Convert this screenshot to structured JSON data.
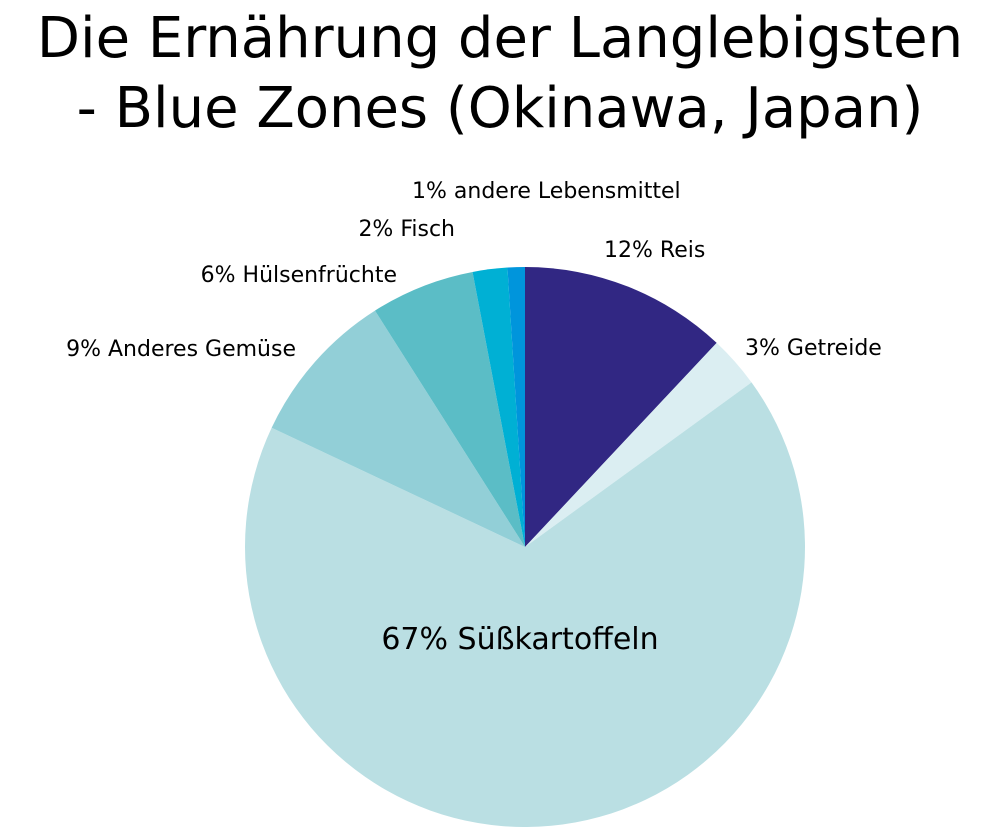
{
  "title_lines": [
    "Die Ernährung der Langlebigsten",
    "- Blue Zones (Okinawa, Japan)"
  ],
  "chart_data": {
    "type": "pie",
    "title": "Die Ernährung der Langlebigsten - Blue Zones (Okinawa, Japan)",
    "slices": [
      {
        "label": "12% Reis",
        "value": 12,
        "color": "#312783"
      },
      {
        "label": "3% Getreide",
        "value": 3,
        "color": "#dbeef2"
      },
      {
        "label": "67% Süßkartoffeln",
        "value": 67,
        "color": "#badfe3"
      },
      {
        "label": "9% Anderes Gemüse",
        "value": 9,
        "color": "#92cfd7"
      },
      {
        "label": "6% Hülsenfrüchte",
        "value": 6,
        "color": "#5bbdc6"
      },
      {
        "label": "2% Fisch",
        "value": 2,
        "color": "#00b0d4"
      },
      {
        "label": "1% andere Lebensmittel",
        "value": 1,
        "color": "#0095dc"
      }
    ],
    "start_angle": "12 o'clock",
    "direction": "clockwise",
    "legend": "none"
  }
}
